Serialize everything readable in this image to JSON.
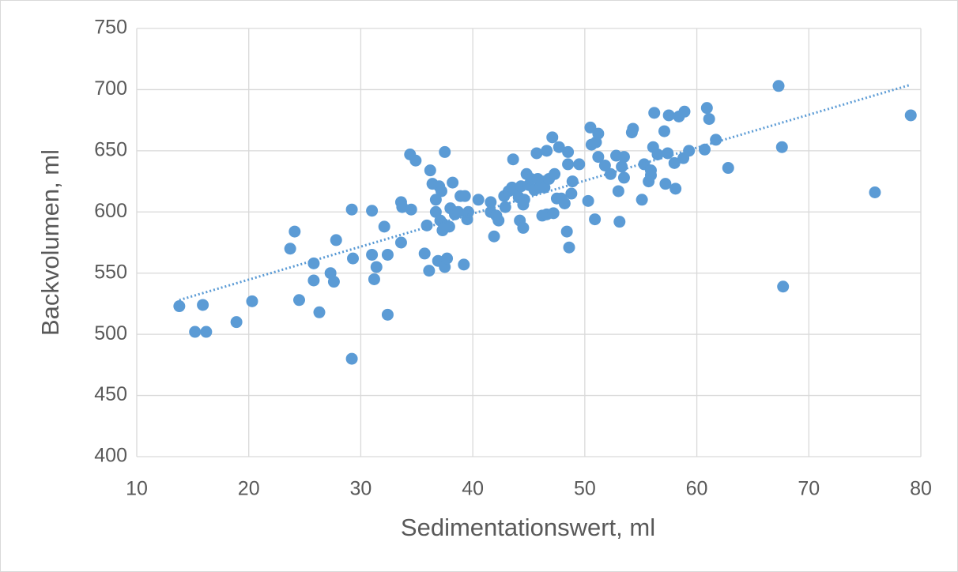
{
  "chart_data": {
    "type": "scatter",
    "x_label": "Sedimentationswert, ml",
    "y_label": "Backvolumen, ml",
    "xlim": [
      10,
      80
    ],
    "xticks": [
      10,
      20,
      30,
      40,
      50,
      60,
      70,
      80
    ],
    "ylim": [
      400,
      750
    ],
    "yticks": [
      400,
      450,
      500,
      550,
      600,
      650,
      700,
      750
    ],
    "grid": true,
    "color": "#5b9bd5",
    "x": [
      13.8,
      15.2,
      15.9,
      16.2,
      18.9,
      20.3,
      23.7,
      24.1,
      24.5,
      25.8,
      25.8,
      26.3,
      27.3,
      27.6,
      27.8,
      29.2,
      29.3,
      29.2,
      31.0,
      31.0,
      31.2,
      31.4,
      32.1,
      32.4,
      32.4,
      33.6,
      33.6,
      33.7,
      34.4,
      34.5,
      34.9,
      35.7,
      35.9,
      36.1,
      36.2,
      36.4,
      36.7,
      36.7,
      36.9,
      37.0,
      37.1,
      37.2,
      37.3,
      37.4,
      37.5,
      37.5,
      37.7,
      37.9,
      38.0,
      38.2,
      38.4,
      38.7,
      38.9,
      39.2,
      39.3,
      39.5,
      39.6,
      40.5,
      41.6,
      41.6,
      41.9,
      42.1,
      42.3,
      42.8,
      42.9,
      43.2,
      43.5,
      43.6,
      43.9,
      44.1,
      44.2,
      44.3,
      44.5,
      44.6,
      44.5,
      44.8,
      45.0,
      45.2,
      45.5,
      45.7,
      45.8,
      46.0,
      46.2,
      46.2,
      46.4,
      46.6,
      46.6,
      46.8,
      47.1,
      47.2,
      47.3,
      47.5,
      47.7,
      47.9,
      48.2,
      48.4,
      48.5,
      48.5,
      48.6,
      48.8,
      48.9,
      49.5,
      50.3,
      50.5,
      50.6,
      50.9,
      51.0,
      51.2,
      51.2,
      51.8,
      52.3,
      52.8,
      53.0,
      53.1,
      53.3,
      53.5,
      53.5,
      54.2,
      54.3,
      55.1,
      55.3,
      55.7,
      55.9,
      55.9,
      56.1,
      56.2,
      56.5,
      57.1,
      57.2,
      57.4,
      57.5,
      58.0,
      58.1,
      58.4,
      58.8,
      58.9,
      59.3,
      60.7,
      60.9,
      61.1,
      61.7,
      62.8,
      67.3,
      67.6,
      67.7,
      75.9,
      79.1
    ],
    "values": [
      523,
      502,
      524,
      502,
      510,
      527,
      570,
      584,
      528,
      558,
      544,
      518,
      550,
      543,
      577,
      602,
      562,
      480,
      601,
      565,
      545,
      555,
      588,
      565,
      516,
      575,
      608,
      604,
      647,
      602,
      642,
      566,
      589,
      552,
      634,
      623,
      610,
      600,
      560,
      621,
      593,
      617,
      585,
      590,
      555,
      649,
      562,
      588,
      603,
      624,
      598,
      600,
      613,
      557,
      613,
      594,
      600,
      610,
      608,
      600,
      580,
      597,
      593,
      613,
      604,
      617,
      620,
      643,
      617,
      612,
      593,
      621,
      606,
      610,
      587,
      631,
      622,
      627,
      618,
      648,
      627,
      620,
      625,
      597,
      620,
      598,
      650,
      627,
      661,
      599,
      631,
      611,
      653,
      611,
      607,
      584,
      639,
      649,
      571,
      615,
      625,
      639,
      609,
      669,
      655,
      594,
      657,
      664,
      645,
      638,
      631,
      646,
      617,
      592,
      637,
      645,
      628,
      665,
      668,
      610,
      639,
      625,
      630,
      634,
      653,
      681,
      647,
      666,
      623,
      648,
      679,
      640,
      619,
      678,
      644,
      682,
      650,
      651,
      685,
      676,
      659,
      636,
      703,
      653,
      539,
      616,
      679
    ],
    "trendline": {
      "x": [
        13.8,
        79.1
      ],
      "y": [
        528,
        704
      ]
    }
  }
}
